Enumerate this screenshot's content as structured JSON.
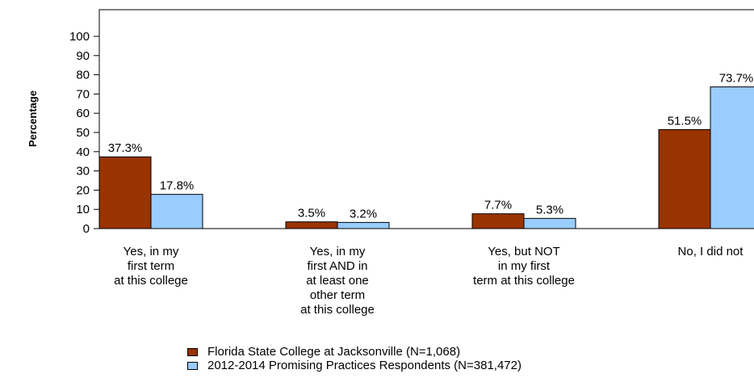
{
  "chart_data": {
    "type": "bar",
    "ylabel": "Percentage",
    "ylim": [
      0,
      100
    ],
    "yticks": [
      0,
      10,
      20,
      30,
      40,
      50,
      60,
      70,
      80,
      90,
      100
    ],
    "categories": [
      [
        "Yes, in my",
        "first term",
        "at this college"
      ],
      [
        "Yes, in my",
        "first AND in",
        "at least one",
        "other term",
        "at this college"
      ],
      [
        "Yes, but NOT",
        "in my first",
        "term at this college"
      ],
      [
        "No, I did not"
      ]
    ],
    "series": [
      {
        "name": "Florida State College at Jacksonville (N=1,068)",
        "color": "#993300",
        "values": [
          37.3,
          3.5,
          7.7,
          51.5
        ],
        "labels": [
          "37.3%",
          "3.5%",
          "7.7%",
          "51.5%"
        ]
      },
      {
        "name": "2012-2014 Promising Practices Respondents (N=381,472)",
        "color": "#99ccff",
        "values": [
          17.8,
          3.2,
          5.3,
          73.7
        ],
        "labels": [
          "17.8%",
          "3.2%",
          "5.3%",
          "73.7%"
        ]
      }
    ],
    "grid": false,
    "legend_position": "bottom"
  }
}
